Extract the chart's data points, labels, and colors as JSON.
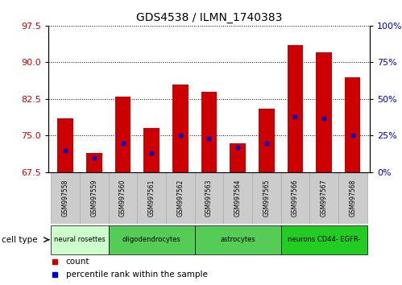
{
  "title": "GDS4538 / ILMN_1740383",
  "samples": [
    "GSM997558",
    "GSM997559",
    "GSM997560",
    "GSM997561",
    "GSM997562",
    "GSM997563",
    "GSM997564",
    "GSM997565",
    "GSM997566",
    "GSM997567",
    "GSM997568"
  ],
  "count_values": [
    78.5,
    71.5,
    83.0,
    76.5,
    85.5,
    84.0,
    73.5,
    80.5,
    93.5,
    92.0,
    87.0
  ],
  "percentile_values": [
    15,
    10,
    20,
    13,
    25,
    23,
    17,
    20,
    38,
    37,
    25
  ],
  "ylim_left": [
    67.5,
    97.5
  ],
  "ylim_right": [
    0,
    100
  ],
  "yticks_left": [
    67.5,
    75.0,
    82.5,
    90.0,
    97.5
  ],
  "yticks_right": [
    0,
    25,
    50,
    75,
    100
  ],
  "bar_color": "#cc0000",
  "percentile_color": "#0000cc",
  "grid_color": "#000000",
  "cell_types": [
    {
      "label": "neural rosettes",
      "start": 0,
      "end": 2,
      "color": "#ccffcc"
    },
    {
      "label": "oligodendrocytes",
      "start": 2,
      "end": 5,
      "color": "#55cc55"
    },
    {
      "label": "astrocytes",
      "start": 5,
      "end": 8,
      "color": "#55cc55"
    },
    {
      "label": "neurons CD44- EGFR-",
      "start": 8,
      "end": 11,
      "color": "#22cc22"
    }
  ],
  "sample_box_color": "#cccccc",
  "sample_box_edge": "#aaaaaa",
  "background_color": "#ffffff",
  "bar_width": 0.55,
  "legend_items": [
    {
      "color": "#cc0000",
      "label": "count"
    },
    {
      "color": "#0000cc",
      "label": "percentile rank within the sample"
    }
  ]
}
